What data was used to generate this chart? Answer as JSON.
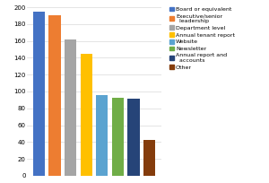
{
  "categories": [
    "Board or equivalent",
    "Executive/senior\nleadership",
    "Department level",
    "Annual tenant report",
    "Website",
    "Newsletter",
    "Annual report and\naccounts",
    "Other"
  ],
  "values": [
    195,
    191,
    162,
    145,
    96,
    93,
    92,
    42
  ],
  "bar_colors": [
    "#4472c4",
    "#ed7d31",
    "#a5a5a5",
    "#ffc000",
    "#5ba3d0",
    "#70ad47",
    "#264478",
    "#843c0c"
  ],
  "legend_labels": [
    "Board or equivalent",
    "Executive/senior\n  leadership",
    "Department level",
    "Annual tenant report",
    "Website",
    "Newsletter",
    "Annual report and\n  accounts",
    "Other"
  ],
  "ylim": [
    0,
    200
  ],
  "yticks": [
    0,
    20,
    40,
    60,
    80,
    100,
    120,
    140,
    160,
    180,
    200
  ],
  "background_color": "#ffffff",
  "grid_color": "#d9d9d9"
}
